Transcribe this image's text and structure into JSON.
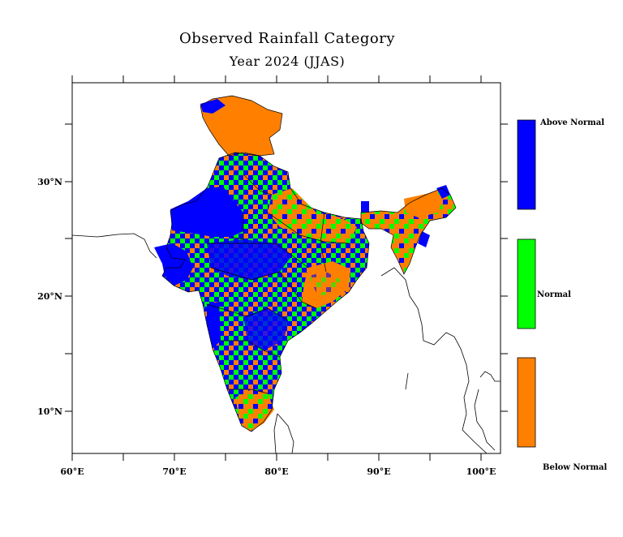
{
  "title": "Observed Rainfall Category",
  "subtitle": "Year 2024 (JJAS)",
  "x_ticks": [
    "60°E",
    "70°E",
    "80°E",
    "90°E",
    "100°E"
  ],
  "y_ticks": [
    "10°N",
    "20°N",
    "30°N"
  ],
  "legend": [
    {
      "label": "Above Normal",
      "color": "#0000ff"
    },
    {
      "label": "Normal",
      "color": "#00ff00"
    },
    {
      "label": "Below Normal",
      "color": "#ff8000"
    }
  ]
}
